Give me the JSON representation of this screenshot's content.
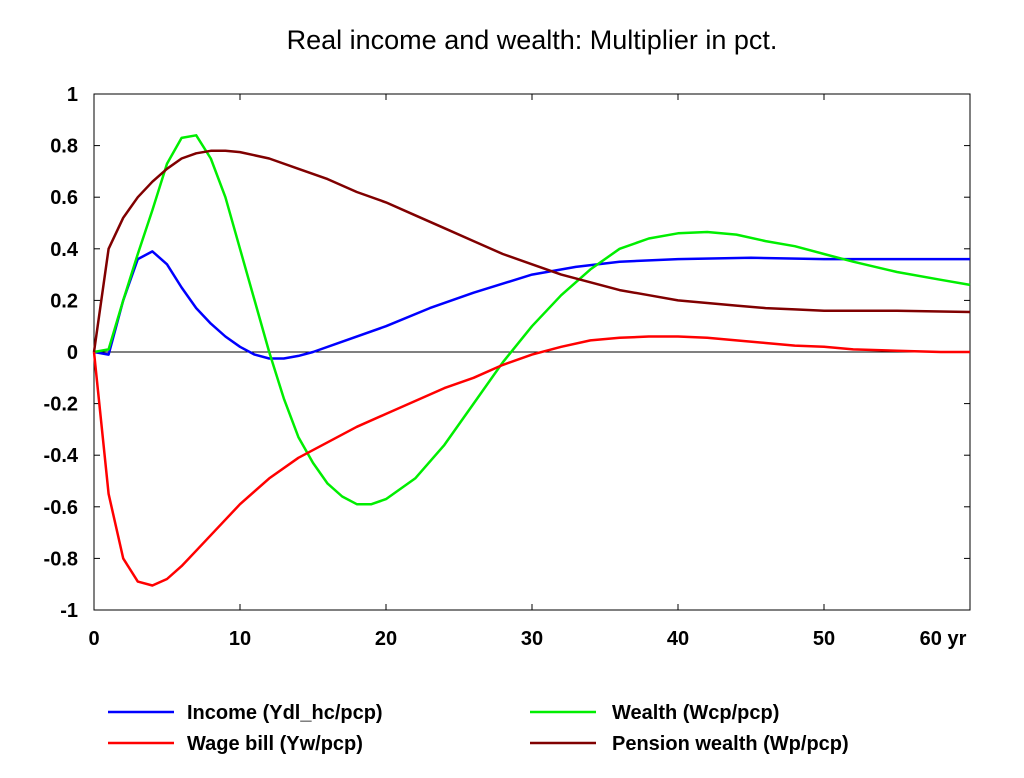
{
  "chart_data": {
    "type": "line",
    "title": "Real income and wealth: Multiplier in pct.",
    "xlabel": "",
    "ylabel": "",
    "x_unit_label": "yr",
    "xlim": [
      0,
      60
    ],
    "ylim": [
      -1,
      1
    ],
    "x_ticks": [
      0,
      10,
      20,
      30,
      40,
      50,
      60
    ],
    "x_tick_labels": [
      "0",
      "10",
      "20",
      "30",
      "40",
      "50",
      "60 yr"
    ],
    "y_ticks": [
      1,
      0.8,
      0.6,
      0.4,
      0.2,
      0,
      -0.2,
      -0.4,
      -0.6,
      -0.8,
      -1
    ],
    "y_tick_labels": [
      "1",
      "0.8",
      "0.6",
      "0.4",
      "0.2",
      "0",
      "-0.2",
      "-0.4",
      "-0.6",
      "-0.8",
      "-1"
    ],
    "grid": false,
    "zero_line": true,
    "legend_position": "bottom",
    "series": [
      {
        "name": "Income (Ydl_hc/pcp)",
        "color": "#0000ff",
        "points": [
          [
            0,
            0
          ],
          [
            1,
            -0.01
          ],
          [
            2,
            0.2
          ],
          [
            3,
            0.36
          ],
          [
            4,
            0.39
          ],
          [
            5,
            0.34
          ],
          [
            6,
            0.25
          ],
          [
            7,
            0.17
          ],
          [
            8,
            0.11
          ],
          [
            9,
            0.06
          ],
          [
            10,
            0.02
          ],
          [
            11,
            -0.01
          ],
          [
            12,
            -0.025
          ],
          [
            13,
            -0.025
          ],
          [
            14,
            -0.015
          ],
          [
            15,
            0
          ],
          [
            17,
            0.04
          ],
          [
            20,
            0.1
          ],
          [
            23,
            0.17
          ],
          [
            26,
            0.23
          ],
          [
            30,
            0.3
          ],
          [
            33,
            0.33
          ],
          [
            36,
            0.35
          ],
          [
            40,
            0.36
          ],
          [
            45,
            0.365
          ],
          [
            50,
            0.36
          ],
          [
            55,
            0.36
          ],
          [
            60,
            0.36
          ]
        ]
      },
      {
        "name": "Wealth (Wcp/pcp)",
        "color": "#00ee00",
        "points": [
          [
            0,
            0
          ],
          [
            1,
            0.01
          ],
          [
            2,
            0.2
          ],
          [
            3,
            0.38
          ],
          [
            4,
            0.55
          ],
          [
            5,
            0.73
          ],
          [
            6,
            0.83
          ],
          [
            7,
            0.84
          ],
          [
            8,
            0.75
          ],
          [
            9,
            0.6
          ],
          [
            10,
            0.4
          ],
          [
            11,
            0.2
          ],
          [
            12,
            0.0
          ],
          [
            13,
            -0.18
          ],
          [
            14,
            -0.33
          ],
          [
            15,
            -0.43
          ],
          [
            16,
            -0.51
          ],
          [
            17,
            -0.56
          ],
          [
            18,
            -0.59
          ],
          [
            19,
            -0.59
          ],
          [
            20,
            -0.57
          ],
          [
            22,
            -0.49
          ],
          [
            24,
            -0.36
          ],
          [
            26,
            -0.2
          ],
          [
            28,
            -0.04
          ],
          [
            30,
            0.1
          ],
          [
            32,
            0.22
          ],
          [
            34,
            0.32
          ],
          [
            36,
            0.4
          ],
          [
            38,
            0.44
          ],
          [
            40,
            0.46
          ],
          [
            42,
            0.465
          ],
          [
            44,
            0.455
          ],
          [
            46,
            0.43
          ],
          [
            48,
            0.41
          ],
          [
            50,
            0.38
          ],
          [
            52,
            0.35
          ],
          [
            55,
            0.31
          ],
          [
            58,
            0.28
          ],
          [
            60,
            0.26
          ]
        ]
      },
      {
        "name": "Wage bill (Yw/pcp)",
        "color": "#ff0000",
        "points": [
          [
            0,
            0
          ],
          [
            1,
            -0.55
          ],
          [
            2,
            -0.8
          ],
          [
            3,
            -0.89
          ],
          [
            4,
            -0.905
          ],
          [
            5,
            -0.88
          ],
          [
            6,
            -0.83
          ],
          [
            7,
            -0.77
          ],
          [
            8,
            -0.71
          ],
          [
            9,
            -0.65
          ],
          [
            10,
            -0.59
          ],
          [
            12,
            -0.49
          ],
          [
            14,
            -0.41
          ],
          [
            16,
            -0.35
          ],
          [
            18,
            -0.29
          ],
          [
            20,
            -0.24
          ],
          [
            22,
            -0.19
          ],
          [
            24,
            -0.14
          ],
          [
            26,
            -0.1
          ],
          [
            28,
            -0.05
          ],
          [
            30,
            -0.01
          ],
          [
            32,
            0.02
          ],
          [
            34,
            0.045
          ],
          [
            36,
            0.055
          ],
          [
            38,
            0.06
          ],
          [
            40,
            0.06
          ],
          [
            42,
            0.055
          ],
          [
            44,
            0.045
          ],
          [
            46,
            0.035
          ],
          [
            48,
            0.025
          ],
          [
            50,
            0.02
          ],
          [
            52,
            0.01
          ],
          [
            55,
            0.005
          ],
          [
            58,
            0
          ],
          [
            60,
            0
          ]
        ]
      },
      {
        "name": "Pension wealth (Wp/pcp)",
        "color": "#800000",
        "points": [
          [
            0,
            0
          ],
          [
            1,
            0.4
          ],
          [
            2,
            0.52
          ],
          [
            3,
            0.6
          ],
          [
            4,
            0.66
          ],
          [
            5,
            0.71
          ],
          [
            6,
            0.75
          ],
          [
            7,
            0.77
          ],
          [
            8,
            0.78
          ],
          [
            9,
            0.78
          ],
          [
            10,
            0.775
          ],
          [
            12,
            0.75
          ],
          [
            14,
            0.71
          ],
          [
            16,
            0.67
          ],
          [
            18,
            0.62
          ],
          [
            20,
            0.58
          ],
          [
            22,
            0.53
          ],
          [
            24,
            0.48
          ],
          [
            26,
            0.43
          ],
          [
            28,
            0.38
          ],
          [
            30,
            0.34
          ],
          [
            32,
            0.3
          ],
          [
            34,
            0.27
          ],
          [
            36,
            0.24
          ],
          [
            38,
            0.22
          ],
          [
            40,
            0.2
          ],
          [
            42,
            0.19
          ],
          [
            44,
            0.18
          ],
          [
            46,
            0.17
          ],
          [
            48,
            0.165
          ],
          [
            50,
            0.16
          ],
          [
            55,
            0.16
          ],
          [
            60,
            0.155
          ]
        ]
      }
    ]
  }
}
